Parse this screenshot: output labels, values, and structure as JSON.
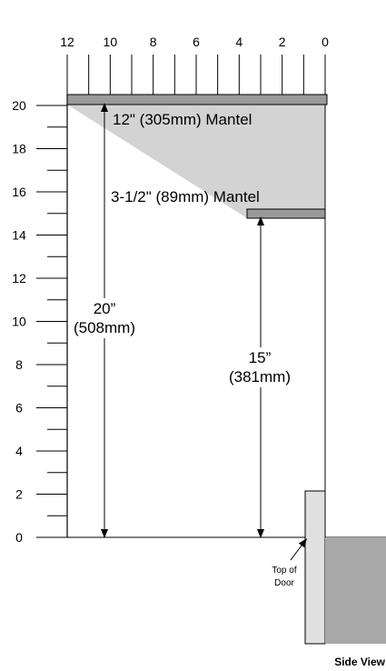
{
  "axes": {
    "top_ticks": [
      "12",
      "10",
      "8",
      "6",
      "4",
      "2",
      "0"
    ],
    "left_ticks": [
      "20",
      "18",
      "16",
      "14",
      "12",
      "10",
      "8",
      "6",
      "4",
      "2",
      "0"
    ]
  },
  "mantels": {
    "large_label": "12\" (305mm) Mantel",
    "small_label": "3-1/2\" (89mm) Mantel"
  },
  "dimensions": {
    "tall_line1": "20”",
    "tall_line2": "(508mm)",
    "short_line1": "15”",
    "short_line2": "(381mm)"
  },
  "door": {
    "label_line1": "Top of",
    "label_line2": "Door"
  },
  "view_label": "Side View",
  "colors": {
    "mantel_fill": "#9a9a9a",
    "shade_fill": "#d3d3d3",
    "door_fill": "#a8a8a8",
    "frame_fill": "#e0e0e0",
    "line": "#000000"
  }
}
